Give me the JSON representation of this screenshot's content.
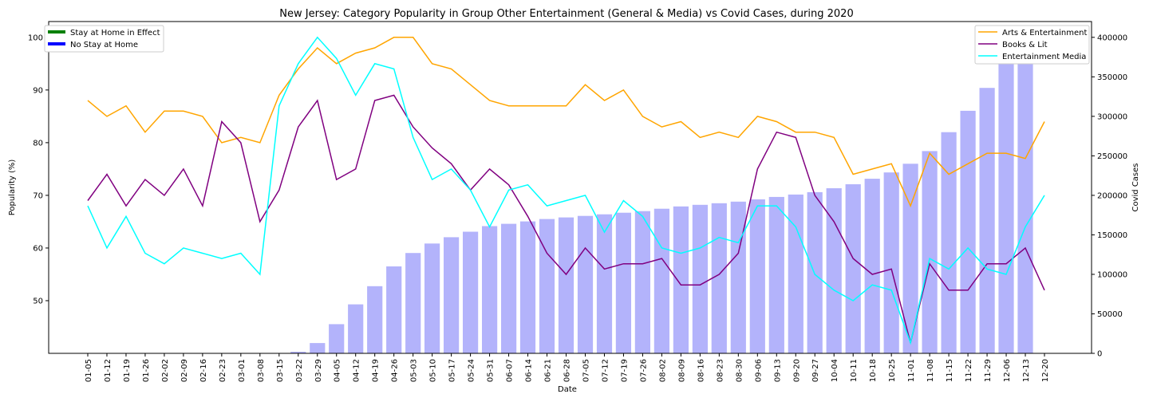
{
  "chart_data": {
    "type": "bar+line",
    "title": "New Jersey: Category Popularity in Group Other Entertainment (General & Media) vs Covid Cases, during 2020",
    "xlabel": "Date",
    "ylabel_left": "Popularity (%)",
    "ylabel_right": "Covid Cases",
    "ylim_left": [
      40,
      103
    ],
    "ylim_right": [
      0,
      420000
    ],
    "yticks_left": [
      "50",
      "60",
      "70",
      "80",
      "90",
      "100"
    ],
    "yticks_right": [
      "0",
      "50000",
      "100000",
      "150000",
      "200000",
      "250000",
      "300000",
      "350000",
      "400000"
    ],
    "categories": [
      "01-05",
      "01-12",
      "01-19",
      "01-26",
      "02-02",
      "02-09",
      "02-16",
      "02-23",
      "03-01",
      "03-08",
      "03-15",
      "03-22",
      "03-29",
      "04-05",
      "04-12",
      "04-19",
      "04-26",
      "05-03",
      "05-10",
      "05-17",
      "05-24",
      "05-31",
      "06-07",
      "06-14",
      "06-21",
      "06-28",
      "07-05",
      "07-12",
      "07-19",
      "07-26",
      "08-02",
      "08-09",
      "08-16",
      "08-23",
      "08-30",
      "09-06",
      "09-13",
      "09-20",
      "09-27",
      "10-04",
      "10-11",
      "10-18",
      "10-25",
      "11-01",
      "11-08",
      "11-15",
      "11-22",
      "11-29",
      "12-06",
      "12-13",
      "12-20"
    ],
    "bars": {
      "name": "Covid Cases",
      "color": "#b3b3fb",
      "values": [
        0,
        0,
        0,
        0,
        0,
        0,
        0,
        0,
        0,
        0,
        0,
        2000,
        13000,
        37000,
        62000,
        85000,
        110000,
        127000,
        139000,
        147000,
        154000,
        161000,
        164000,
        167000,
        170000,
        172000,
        174000,
        176000,
        178000,
        180000,
        183000,
        186000,
        188000,
        190000,
        192000,
        195000,
        198000,
        201000,
        204000,
        209000,
        214000,
        221000,
        229000,
        240000,
        256000,
        280000,
        307000,
        336000,
        368000,
        400000,
        0
      ]
    },
    "series": [
      {
        "name": "Arts & Entertainment",
        "color": "#ffa500",
        "values": [
          88,
          85,
          87,
          82,
          86,
          86,
          85,
          80,
          81,
          80,
          89,
          94,
          98,
          95,
          97,
          98,
          100,
          100,
          95,
          94,
          91,
          88,
          87,
          87,
          87,
          87,
          91,
          88,
          90,
          85,
          83,
          84,
          81,
          82,
          81,
          85,
          84,
          82,
          82,
          81,
          74,
          75,
          76,
          68,
          78,
          74,
          76,
          78,
          78,
          77,
          84
        ]
      },
      {
        "name": "Books & Lit",
        "color": "#800080",
        "values": [
          69,
          74,
          68,
          73,
          70,
          75,
          68,
          84,
          80,
          65,
          71,
          83,
          88,
          73,
          75,
          88,
          89,
          83,
          79,
          76,
          71,
          75,
          72,
          66,
          59,
          55,
          60,
          56,
          57,
          57,
          58,
          53,
          53,
          55,
          59,
          75,
          82,
          81,
          70,
          65,
          58,
          55,
          56,
          42,
          57,
          52,
          52,
          57,
          57,
          60,
          52
        ]
      },
      {
        "name": "Entertainment Media",
        "color": "#00ffff",
        "values": [
          68,
          60,
          66,
          59,
          57,
          60,
          59,
          58,
          59,
          55,
          87,
          95,
          100,
          96,
          89,
          95,
          94,
          81,
          73,
          75,
          71,
          64,
          71,
          72,
          68,
          69,
          70,
          63,
          69,
          66,
          60,
          59,
          60,
          62,
          61,
          68,
          68,
          64,
          55,
          52,
          50,
          53,
          52,
          42,
          58,
          56,
          60,
          56,
          55,
          64,
          70
        ]
      }
    ],
    "legend_left": {
      "placement": "top-left",
      "entries": [
        {
          "label": "Stay at Home in Effect",
          "color": "#008000"
        },
        {
          "label": "No Stay at Home",
          "color": "#0000ff"
        }
      ]
    },
    "legend_right": {
      "placement": "top-right"
    },
    "grid": false
  }
}
